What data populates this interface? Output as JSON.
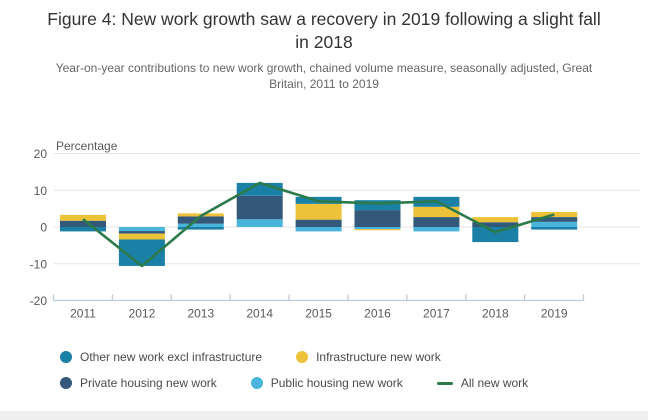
{
  "figure": {
    "title": "Figure 4: New work growth saw a recovery in 2019 following a slight fall in 2018",
    "subtitle": "Year-on-year contributions to new work growth, chained volume measure, seasonally adjusted, Great Britain, 2011 to 2019"
  },
  "chart_data": {
    "type": "bar",
    "variant": "stacked-columns-with-line-overlay",
    "ylabel": "Percentage",
    "ylim": [
      -20,
      20
    ],
    "yticks": [
      20,
      10,
      0,
      -10,
      -20
    ],
    "grid": "horizontal gridlines on",
    "categories": [
      "2011",
      "2012",
      "2013",
      "2014",
      "2015",
      "2016",
      "2017",
      "2018",
      "2019"
    ],
    "series": [
      {
        "name": "Other new work excl infrastructure",
        "key": "other",
        "kind": "bar",
        "color": "#1A80A5",
        "values": [
          -1.2,
          -7.2,
          -0.7,
          3.5,
          1.9,
          2.7,
          2.7,
          -4.1,
          -0.7
        ]
      },
      {
        "name": "Infrastructure new work",
        "key": "infrastructure",
        "kind": "bar",
        "color": "#ECC239",
        "values": [
          1.6,
          -1.6,
          0.8,
          0.0,
          4.3,
          -0.3,
          2.8,
          1.4,
          1.4
        ]
      },
      {
        "name": "Private housing new work",
        "key": "private",
        "kind": "bar",
        "color": "#33587A",
        "values": [
          1.7,
          -0.7,
          2.0,
          6.4,
          2.0,
          4.6,
          2.7,
          1.3,
          1.3
        ]
      },
      {
        "name": "Public housing new work",
        "key": "public",
        "kind": "bar",
        "color": "#4AB5DB",
        "values": [
          0.0,
          -1.1,
          0.9,
          2.1,
          -1.2,
          -0.6,
          -1.2,
          0.0,
          1.4
        ]
      },
      {
        "name": "All new work",
        "key": "all_new_work",
        "kind": "line",
        "color": "#2B7A4B",
        "values": [
          2.1,
          -10.6,
          3.0,
          12.0,
          7.0,
          6.4,
          7.0,
          -1.4,
          3.4
        ]
      }
    ],
    "stack_order": [
      "public",
      "private",
      "infrastructure",
      "other"
    ],
    "legend_position": "bottom-left, two rows",
    "colors": {
      "grid_line": "#E4E4E4",
      "axis_line": "#BDCCDA",
      "tick_mark": "#BDCCDA",
      "axis_text": "#595959"
    }
  }
}
